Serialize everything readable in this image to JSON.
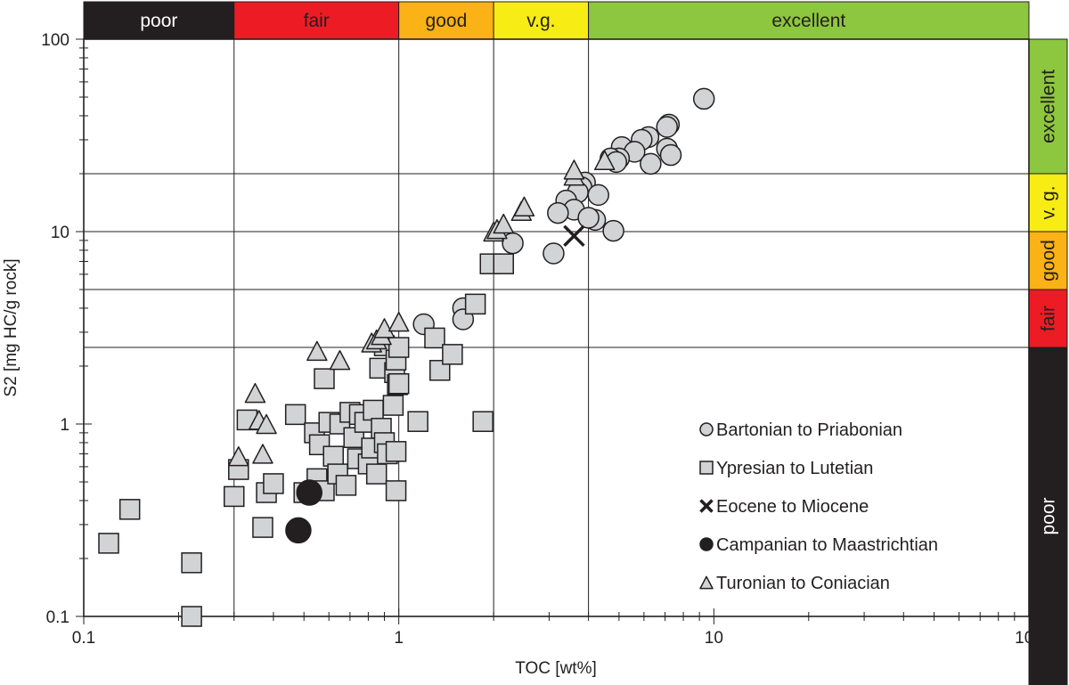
{
  "chart_data": {
    "type": "scatter",
    "title": "",
    "xlabel": "TOC [wt%]",
    "ylabel": "S2 [mg HC/g rock]",
    "x_scale": "log",
    "y_scale": "log",
    "xlim": [
      0.1,
      100
    ],
    "ylim": [
      0.1,
      100
    ],
    "x_ticks": [
      {
        "value": 0.1,
        "label": "0.1"
      },
      {
        "value": 1,
        "label": "1"
      },
      {
        "value": 10,
        "label": "10"
      },
      {
        "value": 100,
        "label": "100"
      }
    ],
    "y_ticks": [
      {
        "value": 0.1,
        "label": "0.1"
      },
      {
        "value": 1,
        "label": "1"
      },
      {
        "value": 10,
        "label": "10"
      },
      {
        "value": 100,
        "label": "100"
      }
    ],
    "x_thresholds": [
      0.3,
      1,
      2,
      4
    ],
    "y_thresholds": [
      2.5,
      5,
      10,
      20
    ],
    "top_bands": [
      {
        "label": "poor",
        "from": 0.1,
        "to": 0.3,
        "color": "#231f20",
        "text_color": "#ffffff"
      },
      {
        "label": "fair",
        "from": 0.3,
        "to": 1,
        "color": "#ed1c24",
        "text_color": "#231f20"
      },
      {
        "label": "good",
        "from": 1,
        "to": 2,
        "color": "#fbb216",
        "text_color": "#231f20"
      },
      {
        "label": "v.g.",
        "from": 2,
        "to": 4,
        "color": "#f7ec13",
        "text_color": "#231f20"
      },
      {
        "label": "excellent",
        "from": 4,
        "to": 100,
        "color": "#8dc63f",
        "text_color": "#231f20"
      }
    ],
    "right_bands": [
      {
        "label": "poor",
        "from": 0.1,
        "to": 2.5,
        "color": "#231f20",
        "text_color": "#ffffff"
      },
      {
        "label": "fair",
        "from": 2.5,
        "to": 5,
        "color": "#ed1c24",
        "text_color": "#231f20"
      },
      {
        "label": "good",
        "from": 5,
        "to": 10,
        "color": "#fbb216",
        "text_color": "#231f20"
      },
      {
        "label": "v. g.",
        "from": 10,
        "to": 20,
        "color": "#f7ec13",
        "text_color": "#231f20"
      },
      {
        "label": "excellent",
        "from": 20,
        "to": 100,
        "color": "#8dc63f",
        "text_color": "#231f20"
      }
    ],
    "legend_position": "bottom-right",
    "series": [
      {
        "name": "Bartonian to Priabonian",
        "marker": "circle",
        "fill": "#d1d3d4",
        "points": [
          [
            9.3,
            49
          ],
          [
            7.2,
            36
          ],
          [
            7.1,
            35
          ],
          [
            6.2,
            31
          ],
          [
            5.9,
            30
          ],
          [
            5.1,
            27.5
          ],
          [
            5.6,
            26
          ],
          [
            7.1,
            27
          ],
          [
            7.3,
            25
          ],
          [
            5,
            24
          ],
          [
            4.7,
            24
          ],
          [
            4.9,
            23
          ],
          [
            6.3,
            22.5
          ],
          [
            3.9,
            18
          ],
          [
            3.8,
            17
          ],
          [
            4.3,
            15.5
          ],
          [
            3.7,
            16
          ],
          [
            3.4,
            14.5
          ],
          [
            3.6,
            13
          ],
          [
            3.2,
            12.5
          ],
          [
            4.2,
            11.5
          ],
          [
            4,
            11.8
          ],
          [
            4.8,
            10.1
          ],
          [
            2.3,
            8.7
          ],
          [
            3.1,
            7.7
          ],
          [
            1.6,
            4
          ],
          [
            1.6,
            3.5
          ],
          [
            1.2,
            3.3
          ]
        ]
      },
      {
        "name": "Ypresian to Lutetian",
        "marker": "square",
        "fill": "#d1d3d4",
        "points": [
          [
            0.12,
            0.24
          ],
          [
            0.14,
            0.36
          ],
          [
            0.22,
            0.19
          ],
          [
            0.22,
            0.1
          ],
          [
            0.3,
            0.42
          ],
          [
            0.31,
            0.58
          ],
          [
            0.33,
            1.05
          ],
          [
            0.37,
            0.29
          ],
          [
            0.38,
            0.44
          ],
          [
            0.4,
            0.49
          ],
          [
            0.47,
            1.12
          ],
          [
            0.5,
            0.44
          ],
          [
            0.54,
            0.9
          ],
          [
            0.55,
            0.52
          ],
          [
            0.56,
            0.78
          ],
          [
            0.58,
            0.45
          ],
          [
            0.58,
            1.72
          ],
          [
            0.6,
            1.02
          ],
          [
            0.62,
            0.68
          ],
          [
            0.64,
            0.55
          ],
          [
            0.65,
            1.0
          ],
          [
            0.68,
            0.48
          ],
          [
            0.7,
            1.15
          ],
          [
            0.72,
            0.85
          ],
          [
            0.74,
            0.66
          ],
          [
            0.75,
            1.12
          ],
          [
            0.78,
            1.02
          ],
          [
            0.8,
            0.62
          ],
          [
            0.82,
            0.75
          ],
          [
            0.83,
            1.18
          ],
          [
            0.85,
            0.55
          ],
          [
            0.87,
            1.95
          ],
          [
            0.88,
            0.95
          ],
          [
            0.9,
            2.55
          ],
          [
            0.9,
            0.8
          ],
          [
            0.92,
            0.7
          ],
          [
            0.96,
            1.25
          ],
          [
            0.97,
            1.85
          ],
          [
            0.98,
            2.15
          ],
          [
            0.98,
            0.72
          ],
          [
            0.98,
            0.45
          ],
          [
            0.99,
            1.6
          ],
          [
            1.0,
            2.5
          ],
          [
            1.0,
            1.62
          ],
          [
            1.15,
            1.03
          ],
          [
            1.3,
            2.8
          ],
          [
            1.35,
            1.9
          ],
          [
            1.48,
            2.3
          ],
          [
            1.75,
            4.2
          ],
          [
            1.85,
            1.03
          ],
          [
            1.95,
            6.8
          ],
          [
            2.15,
            6.8
          ]
        ]
      },
      {
        "name": "Eocene to Miocene",
        "marker": "x",
        "fill": "#231f20",
        "points": [
          [
            3.6,
            9.5
          ]
        ]
      },
      {
        "name": "Campanian to Maastrichtian",
        "marker": "circle",
        "fill": "#231f20",
        "points": [
          [
            0.52,
            0.44
          ],
          [
            0.48,
            0.28
          ]
        ]
      },
      {
        "name": "Turonian to Coniacian",
        "marker": "triangle",
        "fill": "#d1d3d4",
        "points": [
          [
            0.31,
            0.68
          ],
          [
            0.35,
            1.45
          ],
          [
            0.36,
            1.05
          ],
          [
            0.38,
            1.0
          ],
          [
            0.37,
            0.7
          ],
          [
            0.55,
            2.4
          ],
          [
            0.65,
            2.15
          ],
          [
            0.82,
            2.65
          ],
          [
            0.85,
            2.75
          ],
          [
            0.88,
            2.9
          ],
          [
            0.9,
            3.15
          ],
          [
            1.0,
            3.4
          ],
          [
            2.0,
            10
          ],
          [
            2.05,
            10.3
          ],
          [
            2.15,
            11
          ],
          [
            2.45,
            12.8
          ],
          [
            2.5,
            13.5
          ],
          [
            3.6,
            19.5
          ],
          [
            3.6,
            21
          ],
          [
            4.5,
            23.5
          ]
        ]
      }
    ]
  }
}
